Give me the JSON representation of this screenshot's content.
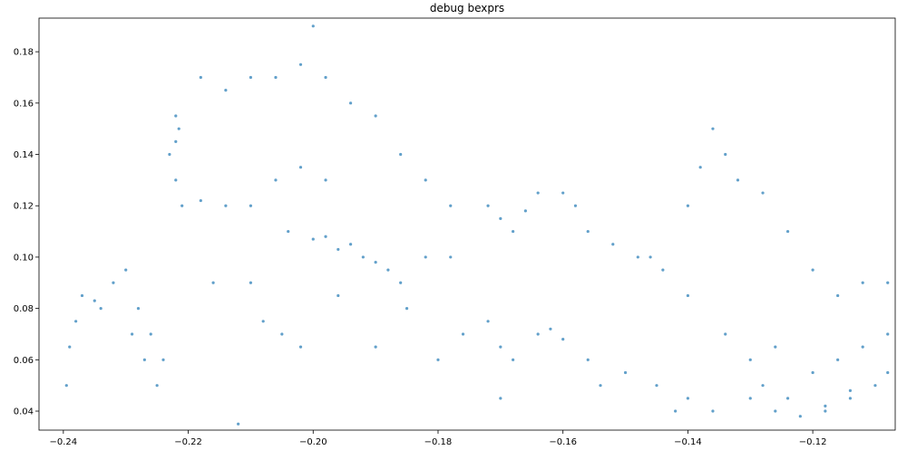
{
  "chart_data": {
    "type": "scatter",
    "title": "debug bexprs",
    "color": "#1f77b4",
    "x": [
      -0.2395,
      -0.239,
      -0.238,
      -0.237,
      -0.235,
      -0.234,
      -0.232,
      -0.23,
      -0.229,
      -0.228,
      -0.227,
      -0.226,
      -0.225,
      -0.224,
      -0.222,
      -0.223,
      -0.222,
      -0.2215,
      -0.221,
      -0.222,
      -0.218,
      -0.214,
      -0.21,
      -0.206,
      -0.202,
      -0.198,
      -0.194,
      -0.19,
      -0.186,
      -0.182,
      -0.178,
      -0.218,
      -0.214,
      -0.21,
      -0.206,
      -0.202,
      -0.198,
      -0.2,
      -0.198,
      -0.196,
      -0.194,
      -0.192,
      -0.19,
      -0.188,
      -0.186,
      -0.182,
      -0.178,
      -0.172,
      -0.17,
      -0.168,
      -0.166,
      -0.164,
      -0.16,
      -0.158,
      -0.156,
      -0.152,
      -0.148,
      -0.146,
      -0.144,
      -0.14,
      -0.18,
      -0.176,
      -0.172,
      -0.17,
      -0.168,
      -0.164,
      -0.162,
      -0.16,
      -0.156,
      -0.15,
      -0.145,
      -0.14,
      -0.136,
      -0.13,
      -0.126,
      -0.122,
      -0.118,
      -0.114,
      -0.11,
      -0.108,
      -0.14,
      -0.138,
      -0.136,
      -0.134,
      -0.132,
      -0.128,
      -0.124,
      -0.12,
      -0.116,
      -0.112,
      -0.108,
      -0.13,
      -0.126,
      -0.12,
      -0.116,
      -0.112,
      -0.108,
      -0.128,
      -0.124,
      -0.118,
      -0.114,
      -0.212,
      -0.21,
      -0.205,
      -0.202,
      -0.2,
      -0.19,
      -0.185,
      -0.216,
      -0.208,
      -0.204,
      -0.196,
      -0.17,
      -0.154,
      -0.142,
      -0.134
    ],
    "values": [
      0.05,
      0.065,
      0.075,
      0.085,
      0.083,
      0.08,
      0.09,
      0.095,
      0.07,
      0.08,
      0.06,
      0.07,
      0.05,
      0.06,
      0.13,
      0.14,
      0.155,
      0.15,
      0.12,
      0.145,
      0.17,
      0.165,
      0.17,
      0.17,
      0.175,
      0.17,
      0.16,
      0.155,
      0.14,
      0.13,
      0.12,
      0.122,
      0.12,
      0.12,
      0.13,
      0.135,
      0.13,
      0.107,
      0.108,
      0.103,
      0.105,
      0.1,
      0.098,
      0.095,
      0.09,
      0.1,
      0.1,
      0.12,
      0.115,
      0.11,
      0.118,
      0.125,
      0.125,
      0.12,
      0.11,
      0.105,
      0.1,
      0.1,
      0.095,
      0.085,
      0.06,
      0.07,
      0.075,
      0.065,
      0.06,
      0.07,
      0.072,
      0.068,
      0.06,
      0.055,
      0.05,
      0.045,
      0.04,
      0.045,
      0.04,
      0.038,
      0.04,
      0.045,
      0.05,
      0.055,
      0.12,
      0.135,
      0.15,
      0.14,
      0.13,
      0.125,
      0.11,
      0.095,
      0.085,
      0.09,
      0.09,
      0.06,
      0.065,
      0.055,
      0.06,
      0.065,
      0.07,
      0.05,
      0.045,
      0.042,
      0.048,
      0.035,
      0.09,
      0.07,
      0.065,
      0.19,
      0.065,
      0.08,
      0.09,
      0.075,
      0.11,
      0.085,
      0.045,
      0.05,
      0.04,
      0.07
    ],
    "xlim": [
      -0.2439,
      -0.1068
    ],
    "ylim": [
      0.0326,
      0.1931
    ],
    "xticks": [
      {
        "value": -0.24,
        "label": "−0.24"
      },
      {
        "value": -0.22,
        "label": "−0.22"
      },
      {
        "value": -0.2,
        "label": "−0.20"
      },
      {
        "value": -0.18,
        "label": "−0.18"
      },
      {
        "value": -0.16,
        "label": "−0.16"
      },
      {
        "value": -0.14,
        "label": "−0.14"
      },
      {
        "value": -0.12,
        "label": "−0.12"
      }
    ],
    "yticks": [
      0.04,
      0.06,
      0.08,
      {
        "value": 0.1,
        "label": "0.10"
      },
      0.12,
      0.14,
      0.16,
      0.18
    ]
  }
}
